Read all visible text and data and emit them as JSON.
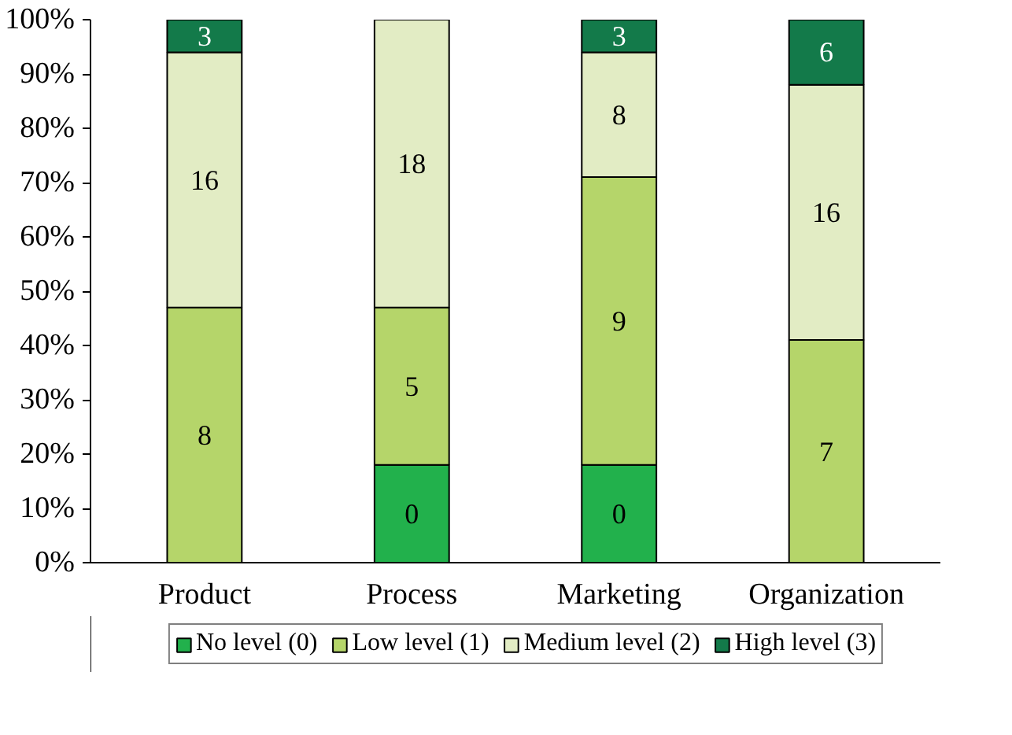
{
  "chart_data": {
    "type": "bar",
    "stacked": true,
    "categories": [
      "Product",
      "Process",
      "Marketing",
      "Organization"
    ],
    "ylim": [
      0,
      100
    ],
    "yticks": [
      {
        "value": 0,
        "label": "0%"
      },
      {
        "value": 10,
        "label": "10%"
      },
      {
        "value": 20,
        "label": "20%"
      },
      {
        "value": 30,
        "label": "30%"
      },
      {
        "value": 40,
        "label": "40%"
      },
      {
        "value": 50,
        "label": "50%"
      },
      {
        "value": 60,
        "label": "60%"
      },
      {
        "value": 70,
        "label": "70%"
      },
      {
        "value": 80,
        "label": "80%"
      },
      {
        "value": 90,
        "label": "90%"
      },
      {
        "value": 100,
        "label": "100%"
      }
    ],
    "legend": "bottom",
    "series": [
      {
        "name": "No level (0)",
        "color": "#22b14c",
        "values": [
          0,
          18,
          18,
          0
        ]
      },
      {
        "name": "Low level (1)",
        "color": "#b5d56a",
        "values": [
          47,
          29,
          53,
          41
        ]
      },
      {
        "name": "Medium level (2)",
        "color": "#e2ecc4",
        "values": [
          47,
          53,
          23,
          47
        ]
      },
      {
        "name": "High level (3)",
        "color": "#137a4a",
        "values": [
          6,
          0,
          6,
          12
        ]
      }
    ],
    "annotations": [
      "8",
      "16",
      "3",
      "0",
      "5",
      "18",
      "0",
      "9",
      "8",
      "3",
      "7",
      "16",
      "6"
    ]
  }
}
